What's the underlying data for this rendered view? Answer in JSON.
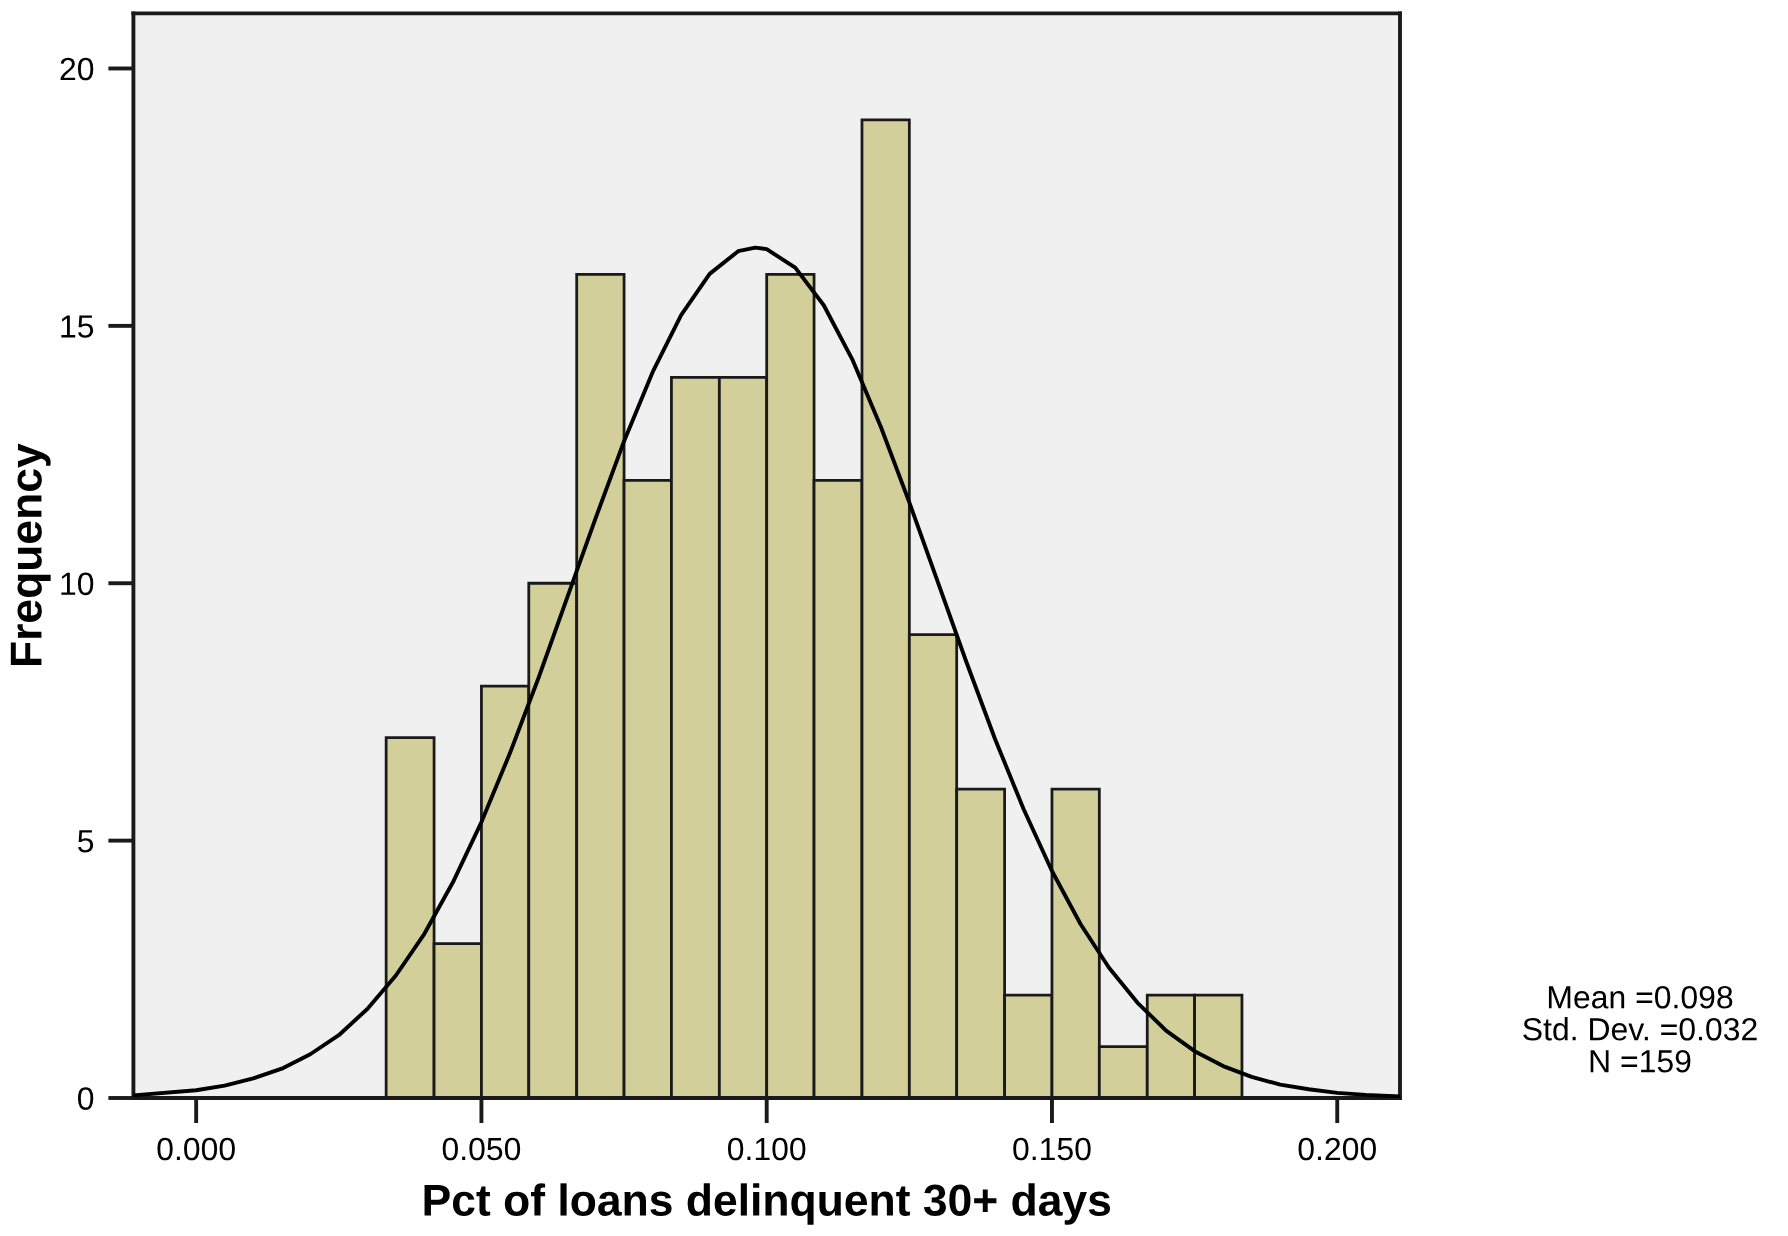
{
  "chart_data": {
    "type": "histogram",
    "xlabel": "Pct of loans delinquent 30+ days",
    "ylabel": "Frequency",
    "bins": [
      0.0333,
      0.0417,
      0.05,
      0.0583,
      0.0667,
      0.075,
      0.0833,
      0.0917,
      0.1,
      0.1083,
      0.1167,
      0.125,
      0.1333,
      0.1417,
      0.15,
      0.1583,
      0.1667,
      0.175,
      0.1833
    ],
    "series": [
      {
        "color": "#d3cf9b",
        "values": [
          7,
          3,
          8,
          10,
          16,
          12,
          14,
          14,
          16,
          12,
          19,
          9,
          6,
          2,
          6,
          1,
          2,
          2
        ]
      },
      {
        "type": "line",
        "color": "#000000",
        "x": [
          -0.011,
          0.0,
          0.005,
          0.01,
          0.015,
          0.02,
          0.025,
          0.03,
          0.035,
          0.04,
          0.045,
          0.05,
          0.055,
          0.06,
          0.065,
          0.07,
          0.075,
          0.08,
          0.085,
          0.09,
          0.095,
          0.098,
          0.1,
          0.105,
          0.11,
          0.115,
          0.12,
          0.125,
          0.13,
          0.135,
          0.14,
          0.145,
          0.15,
          0.155,
          0.16,
          0.165,
          0.17,
          0.175,
          0.18,
          0.185,
          0.19,
          0.195,
          0.2,
          0.205,
          0.211
        ],
        "values": [
          0.05,
          0.15,
          0.24,
          0.38,
          0.57,
          0.85,
          1.22,
          1.73,
          2.38,
          3.19,
          4.19,
          5.36,
          6.7,
          8.16,
          9.71,
          11.26,
          12.76,
          14.1,
          15.21,
          16.01,
          16.45,
          16.52,
          16.49,
          16.13,
          15.4,
          14.35,
          13.04,
          11.57,
          10.02,
          8.47,
          6.98,
          5.62,
          4.41,
          3.38,
          2.53,
          1.85,
          1.31,
          0.91,
          0.62,
          0.41,
          0.26,
          0.17,
          0.1,
          0.06,
          0.03
        ]
      }
    ],
    "xlim": [
      -0.011,
      0.211
    ],
    "xticks": [
      {
        "value": 0,
        "label": "0.000"
      },
      {
        "value": 0.05,
        "label": "0.050"
      },
      {
        "value": 0.1,
        "label": "0.100"
      },
      {
        "value": 0.15,
        "label": "0.150"
      },
      {
        "value": 0.2,
        "label": "0.200"
      }
    ],
    "ylim": [
      0,
      21.07
    ],
    "yticks": [
      0,
      5,
      10,
      15,
      20
    ],
    "annotations": [
      "Mean =0.098",
      "Std. Dev. =0.032",
      "N =159"
    ]
  }
}
